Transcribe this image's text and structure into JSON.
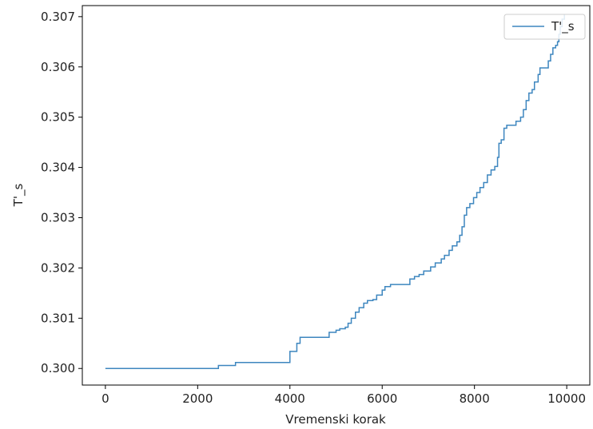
{
  "chart_data": {
    "type": "line",
    "title": "",
    "xlabel": "Vremenski korak",
    "ylabel": "T'_s",
    "xlim": [
      -500,
      10500
    ],
    "ylim": [
      0.29967,
      0.30722
    ],
    "xticks": [
      0,
      2000,
      4000,
      6000,
      8000,
      10000
    ],
    "xtick_labels": [
      "0",
      "2000",
      "4000",
      "6000",
      "8000",
      "10000"
    ],
    "yticks": [
      0.3,
      0.301,
      0.302,
      0.303,
      0.304,
      0.305,
      0.306,
      0.307
    ],
    "ytick_labels": [
      "0.300",
      "0.301",
      "0.302",
      "0.303",
      "0.304",
      "0.305",
      "0.306",
      "0.307"
    ],
    "grid": false,
    "legend": {
      "position": "top-right",
      "entries": [
        "T'_s"
      ]
    },
    "series": [
      {
        "name": "T'_s",
        "color": "#3d86bf",
        "step": true,
        "points": [
          [
            0,
            0.3
          ],
          [
            2450,
            0.3
          ],
          [
            2450,
            0.30006
          ],
          [
            2820,
            0.30006
          ],
          [
            2820,
            0.30012
          ],
          [
            4000,
            0.30012
          ],
          [
            4000,
            0.30034
          ],
          [
            4150,
            0.30034
          ],
          [
            4150,
            0.3005
          ],
          [
            4220,
            0.3005
          ],
          [
            4220,
            0.30062
          ],
          [
            4850,
            0.30062
          ],
          [
            4850,
            0.30072
          ],
          [
            5000,
            0.30072
          ],
          [
            5000,
            0.30076
          ],
          [
            5080,
            0.30076
          ],
          [
            5080,
            0.30079
          ],
          [
            5200,
            0.30079
          ],
          [
            5200,
            0.30082
          ],
          [
            5260,
            0.30082
          ],
          [
            5260,
            0.3009
          ],
          [
            5330,
            0.3009
          ],
          [
            5330,
            0.301
          ],
          [
            5420,
            0.301
          ],
          [
            5420,
            0.30112
          ],
          [
            5500,
            0.30112
          ],
          [
            5500,
            0.30121
          ],
          [
            5600,
            0.30121
          ],
          [
            5600,
            0.3013
          ],
          [
            5680,
            0.3013
          ],
          [
            5680,
            0.30135
          ],
          [
            5800,
            0.30135
          ],
          [
            5800,
            0.30137
          ],
          [
            5880,
            0.30137
          ],
          [
            5880,
            0.30146
          ],
          [
            6000,
            0.30146
          ],
          [
            6000,
            0.30156
          ],
          [
            6060,
            0.30156
          ],
          [
            6060,
            0.30163
          ],
          [
            6180,
            0.30163
          ],
          [
            6180,
            0.30167
          ],
          [
            6600,
            0.30167
          ],
          [
            6600,
            0.30178
          ],
          [
            6700,
            0.30178
          ],
          [
            6700,
            0.30183
          ],
          [
            6800,
            0.30183
          ],
          [
            6800,
            0.30187
          ],
          [
            6900,
            0.30187
          ],
          [
            6900,
            0.30194
          ],
          [
            7050,
            0.30194
          ],
          [
            7050,
            0.30202
          ],
          [
            7150,
            0.30202
          ],
          [
            7150,
            0.3021
          ],
          [
            7280,
            0.3021
          ],
          [
            7280,
            0.30218
          ],
          [
            7350,
            0.30218
          ],
          [
            7350,
            0.30225
          ],
          [
            7450,
            0.30225
          ],
          [
            7450,
            0.30235
          ],
          [
            7520,
            0.30235
          ],
          [
            7520,
            0.30244
          ],
          [
            7620,
            0.30244
          ],
          [
            7620,
            0.30252
          ],
          [
            7680,
            0.30252
          ],
          [
            7680,
            0.30265
          ],
          [
            7730,
            0.30265
          ],
          [
            7730,
            0.30282
          ],
          [
            7780,
            0.30282
          ],
          [
            7780,
            0.30305
          ],
          [
            7830,
            0.30305
          ],
          [
            7830,
            0.3032
          ],
          [
            7900,
            0.3032
          ],
          [
            7900,
            0.30328
          ],
          [
            7980,
            0.30328
          ],
          [
            7980,
            0.3034
          ],
          [
            8050,
            0.3034
          ],
          [
            8050,
            0.3035
          ],
          [
            8120,
            0.3035
          ],
          [
            8120,
            0.3036
          ],
          [
            8200,
            0.3036
          ],
          [
            8200,
            0.3037
          ],
          [
            8280,
            0.3037
          ],
          [
            8280,
            0.30385
          ],
          [
            8360,
            0.30385
          ],
          [
            8360,
            0.30395
          ],
          [
            8440,
            0.30395
          ],
          [
            8440,
            0.30402
          ],
          [
            8500,
            0.30402
          ],
          [
            8500,
            0.3042
          ],
          [
            8530,
            0.3042
          ],
          [
            8530,
            0.30448
          ],
          [
            8580,
            0.30448
          ],
          [
            8580,
            0.30455
          ],
          [
            8640,
            0.30455
          ],
          [
            8640,
            0.30478
          ],
          [
            8700,
            0.30478
          ],
          [
            8700,
            0.30484
          ],
          [
            8900,
            0.30484
          ],
          [
            8900,
            0.30492
          ],
          [
            9000,
            0.30492
          ],
          [
            9000,
            0.305
          ],
          [
            9060,
            0.305
          ],
          [
            9060,
            0.30515
          ],
          [
            9120,
            0.30515
          ],
          [
            9120,
            0.30533
          ],
          [
            9180,
            0.30533
          ],
          [
            9180,
            0.30548
          ],
          [
            9250,
            0.30548
          ],
          [
            9250,
            0.30555
          ],
          [
            9300,
            0.30555
          ],
          [
            9300,
            0.3057
          ],
          [
            9380,
            0.3057
          ],
          [
            9380,
            0.30585
          ],
          [
            9420,
            0.30585
          ],
          [
            9420,
            0.30598
          ],
          [
            9600,
            0.30598
          ],
          [
            9600,
            0.30612
          ],
          [
            9650,
            0.30612
          ],
          [
            9650,
            0.30625
          ],
          [
            9700,
            0.30625
          ],
          [
            9700,
            0.30638
          ],
          [
            9760,
            0.30638
          ],
          [
            9760,
            0.30643
          ],
          [
            9800,
            0.30643
          ],
          [
            9800,
            0.3065
          ],
          [
            9830,
            0.3065
          ],
          [
            9830,
            0.30665
          ],
          [
            9860,
            0.30665
          ],
          [
            9860,
            0.3068
          ],
          [
            9900,
            0.3068
          ],
          [
            9900,
            0.30695
          ],
          [
            9950,
            0.30695
          ],
          [
            9950,
            0.30705
          ]
        ]
      }
    ]
  }
}
